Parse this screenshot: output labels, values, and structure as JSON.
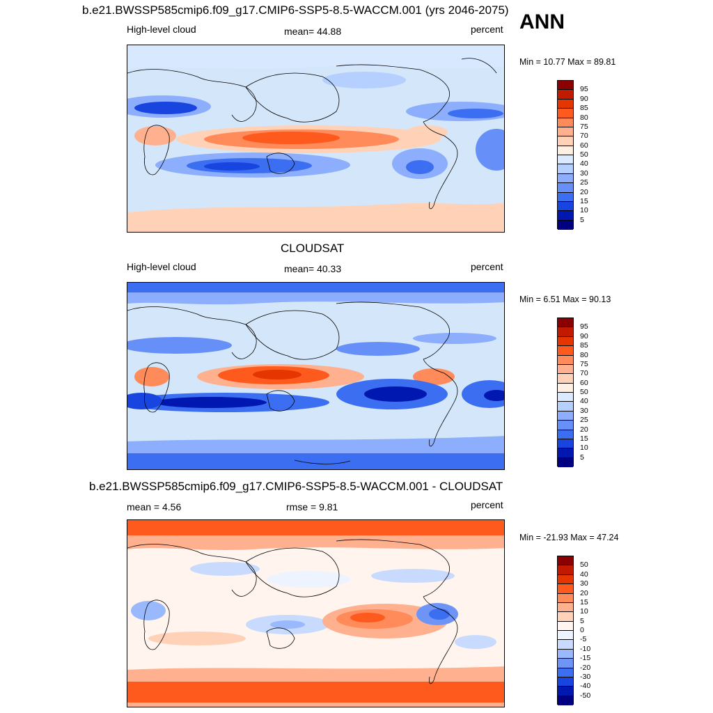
{
  "header": {
    "ann": "ANN"
  },
  "panels": [
    {
      "id": "model",
      "title": "b.e21.BWSSP585cmip6.f09_g17.CMIP6-SSP5-8.5-WACCM.001 (yrs 2046-2075)",
      "left": "High-level cloud",
      "center": "mean=  44.88",
      "right": "percent",
      "minmax": "Min =  10.77 Max =  89.81",
      "scale_labels": [
        "95",
        "90",
        "85",
        "80",
        "75",
        "70",
        "60",
        "50",
        "40",
        "30",
        "25",
        "20",
        "15",
        "10",
        "5"
      ],
      "scale_colors": [
        "#8b0000",
        "#c11a00",
        "#e53500",
        "#ff5a1e",
        "#ff8a5a",
        "#ffb08f",
        "#ffd2b8",
        "#fff0e4",
        "#dceaff",
        "#b5cfff",
        "#8daefc",
        "#6690f8",
        "#3c6ef2",
        "#1845e0",
        "#0018b0",
        "#000080"
      ]
    },
    {
      "id": "obs",
      "title": "CLOUDSAT",
      "left": "High-level cloud",
      "center": "mean=  40.33",
      "right": "percent",
      "minmax": "Min =   6.51 Max =  90.13",
      "scale_labels": [
        "95",
        "90",
        "85",
        "80",
        "75",
        "70",
        "60",
        "50",
        "40",
        "30",
        "25",
        "20",
        "15",
        "10",
        "5"
      ],
      "scale_colors": [
        "#8b0000",
        "#c11a00",
        "#e53500",
        "#ff5a1e",
        "#ff8a5a",
        "#ffb08f",
        "#ffd2b8",
        "#fff0e4",
        "#dceaff",
        "#b5cfff",
        "#8daefc",
        "#6690f8",
        "#3c6ef2",
        "#1845e0",
        "#0018b0",
        "#000080"
      ]
    },
    {
      "id": "diff",
      "title": "b.e21.BWSSP585cmip6.f09_g17.CMIP6-SSP5-8.5-WACCM.001 - CLOUDSAT",
      "left": "mean =   4.56",
      "center": "rmse =    9.81",
      "right": "percent",
      "minmax": "Min = -21.93 Max =  47.24",
      "scale_labels": [
        "50",
        "40",
        "30",
        "20",
        "15",
        "10",
        "5",
        "0",
        "-5",
        "-10",
        "-15",
        "-20",
        "-30",
        "-40",
        "-50"
      ],
      "scale_colors": [
        "#8b0000",
        "#c11a00",
        "#e53500",
        "#ff5a1e",
        "#ff8a5a",
        "#ffb08f",
        "#ffd2b8",
        "#fff4ee",
        "#eef4ff",
        "#c8dbff",
        "#9ab9fc",
        "#6e95f6",
        "#3c6ef2",
        "#1845e0",
        "#0018b0",
        "#000080"
      ]
    }
  ]
}
